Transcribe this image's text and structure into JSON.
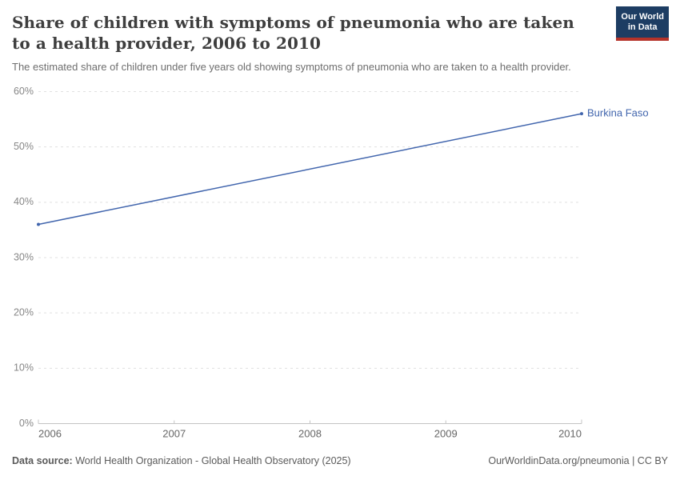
{
  "header": {
    "title": "Share of children with symptoms of pneumonia who are taken to a health provider, 2006 to 2010",
    "subtitle": "The estimated share of children under five years old showing symptoms of pneumonia who are taken to a health provider.",
    "logo": {
      "line1": "Our World",
      "line2": "in Data"
    }
  },
  "chart_data": {
    "type": "line",
    "title": "Share of children with symptoms of pneumonia who are taken to a health provider, 2006 to 2010",
    "xlabel": "",
    "ylabel": "",
    "xlim": [
      2006,
      2010
    ],
    "ylim": [
      0,
      60
    ],
    "grid": "horizontal-dashed",
    "legend_position": "end-of-line-label",
    "x_ticks": [
      2006,
      2007,
      2008,
      2009,
      2010
    ],
    "y_ticks": [
      0,
      10,
      20,
      30,
      40,
      50,
      60
    ],
    "y_tick_labels": [
      "0%",
      "10%",
      "20%",
      "30%",
      "40%",
      "50%",
      "60%"
    ],
    "series": [
      {
        "name": "Burkina Faso",
        "color": "#4165ad",
        "x": [
          2006,
          2010
        ],
        "values": [
          36,
          56
        ]
      }
    ]
  },
  "footer": {
    "datasource_label": "Data source:",
    "datasource_text": "World Health Organization - Global Health Observatory (2025)",
    "citation": "OurWorldinData.org/pneumonia | CC BY"
  },
  "colors": {
    "accent_line": "#4165ad",
    "gridline": "#e0e0e0",
    "axis": "#c4c4c4",
    "y_tick_text": "#878787",
    "x_tick_text": "#666666",
    "logo_navy": "#1d3d63",
    "logo_red": "#b5332a"
  }
}
